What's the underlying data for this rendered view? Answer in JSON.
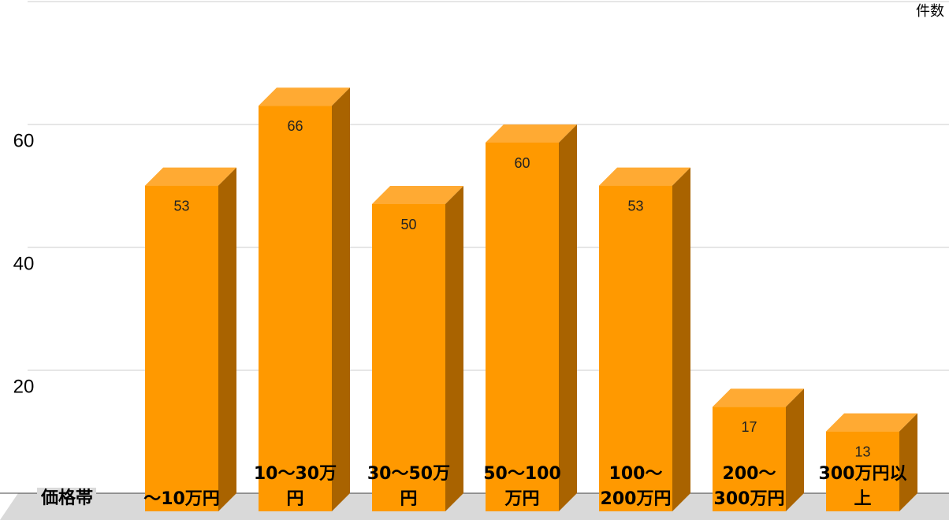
{
  "chart_data": {
    "type": "bar3d",
    "y_axis_title": "件数",
    "x_axis_title": "価格帯",
    "categories": [
      "〜10万円",
      "10〜30万円",
      "30〜50万円",
      "50〜100万円",
      "100〜200万円",
      "200〜300万円",
      "300万円以上"
    ],
    "values": [
      53,
      66,
      50,
      60,
      53,
      17,
      13
    ],
    "color": "#ff9900",
    "top_color": "#ffaa33",
    "side_color": "#a96300",
    "ylim": [
      0,
      80
    ],
    "yticks": [
      20,
      40,
      60
    ],
    "grid": true
  }
}
